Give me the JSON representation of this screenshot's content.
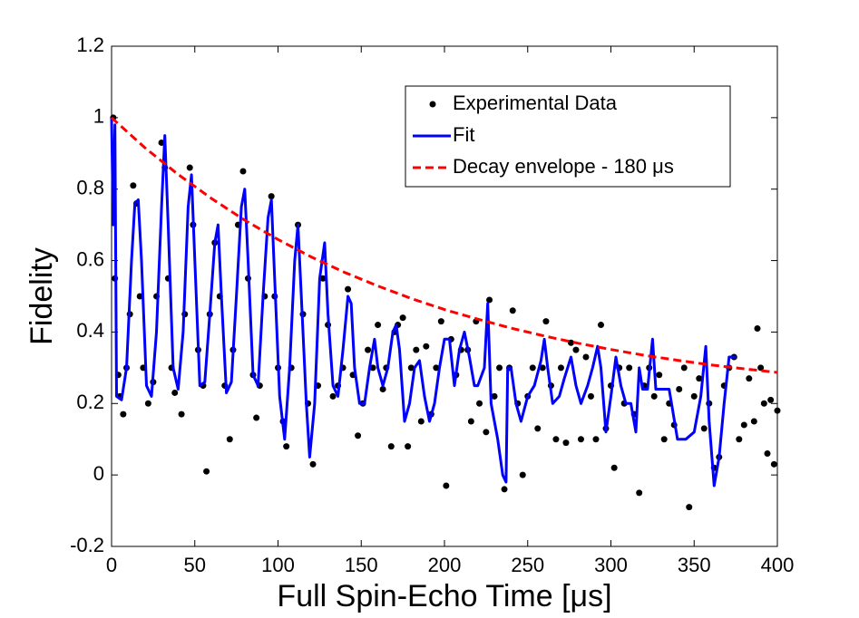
{
  "chart_data": {
    "type": "scatter",
    "xlabel": "Full Spin-Echo Time [μs]",
    "ylabel": "Fidelity",
    "xlim": [
      0,
      400
    ],
    "ylim": [
      -0.2,
      1.2
    ],
    "xticks": [
      0,
      50,
      100,
      150,
      200,
      250,
      300,
      350,
      400
    ],
    "yticks": [
      -0.2,
      0,
      0.2,
      0.4,
      0.6,
      0.8,
      1,
      1.2
    ],
    "legend": "upper right",
    "series": [
      {
        "name": "Experimental Data",
        "color": "#000000",
        "mode": "markers",
        "x": [
          1,
          2,
          4,
          5,
          7,
          9,
          11,
          13,
          15,
          17,
          19,
          22,
          25,
          27,
          30,
          32,
          34,
          36,
          38,
          42,
          44,
          47,
          49,
          52,
          55,
          57,
          59,
          62,
          65,
          68,
          71,
          73,
          76,
          79,
          82,
          85,
          87,
          89,
          92,
          96,
          98,
          100,
          103,
          105,
          108,
          112,
          115,
          118,
          121,
          124,
          127,
          130,
          133,
          136,
          139,
          142,
          145,
          148,
          151,
          154,
          157,
          160,
          163,
          165,
          168,
          170,
          172,
          175,
          178,
          180,
          183,
          186,
          189,
          192,
          195,
          198,
          201,
          204,
          207,
          210,
          214,
          216,
          219,
          221,
          225,
          227,
          230,
          233,
          236,
          239,
          241,
          244,
          247,
          250,
          253,
          256,
          259,
          261,
          264,
          267,
          270,
          273,
          276,
          279,
          282,
          285,
          288,
          291,
          294,
          297,
          300,
          302,
          305,
          308,
          311,
          314,
          317,
          320,
          323,
          326,
          329,
          332,
          335,
          338,
          341,
          344,
          347,
          350,
          353,
          356,
          359,
          362,
          365,
          368,
          371,
          374,
          377,
          380,
          383,
          386,
          388,
          390,
          392,
          394,
          396,
          398,
          400
        ],
        "values": [
          1.0,
          0.55,
          0.28,
          0.22,
          0.17,
          0.3,
          0.45,
          0.81,
          0.76,
          0.5,
          0.3,
          0.2,
          0.26,
          0.5,
          0.93,
          0.86,
          0.55,
          0.3,
          0.23,
          0.17,
          0.45,
          0.86,
          0.7,
          0.35,
          0.25,
          0.01,
          0.45,
          0.65,
          0.5,
          0.25,
          0.1,
          0.35,
          0.7,
          0.85,
          0.55,
          0.28,
          0.16,
          0.25,
          0.5,
          0.78,
          0.5,
          0.3,
          0.15,
          0.08,
          0.3,
          0.7,
          0.45,
          0.2,
          0.03,
          0.25,
          0.55,
          0.42,
          0.22,
          0.25,
          0.3,
          0.52,
          0.28,
          0.11,
          0.2,
          0.35,
          0.3,
          0.42,
          0.24,
          0.3,
          0.08,
          0.4,
          0.42,
          0.44,
          0.08,
          0.3,
          0.35,
          0.15,
          0.36,
          0.17,
          0.3,
          0.43,
          -0.03,
          0.38,
          0.28,
          0.35,
          0.35,
          0.15,
          0.43,
          0.2,
          0.12,
          0.49,
          0.22,
          0.3,
          -0.04,
          0.3,
          0.46,
          0.2,
          0.0,
          0.22,
          0.3,
          0.13,
          0.3,
          0.43,
          0.25,
          0.1,
          0.3,
          0.09,
          0.37,
          0.35,
          0.1,
          0.33,
          0.22,
          0.1,
          0.42,
          0.13,
          0.25,
          0.02,
          0.3,
          0.2,
          0.3,
          0.17,
          -0.05,
          0.25,
          0.3,
          0.22,
          0.28,
          0.1,
          0.2,
          0.14,
          0.24,
          0.3,
          -0.09,
          0.22,
          0.27,
          0.13,
          0.2,
          0.02,
          0.05,
          0.25,
          0.3,
          0.33,
          0.1,
          0.14,
          0.27,
          0.15,
          0.41,
          0.3,
          0.2,
          0.06,
          0.21,
          0.03,
          0.18
        ]
      },
      {
        "name": "Fit",
        "color": "#0000ff",
        "mode": "line",
        "x": [
          0,
          1,
          2,
          3,
          6,
          9,
          12,
          14,
          16,
          18,
          21,
          24,
          27,
          30,
          32,
          34,
          37,
          40,
          43,
          46,
          48,
          50,
          53,
          56,
          59,
          62,
          64,
          66,
          69,
          72,
          75,
          78,
          80,
          82,
          85,
          88,
          91,
          94,
          96,
          98,
          101,
          104,
          107,
          110,
          112,
          114,
          117,
          119,
          122,
          125,
          128,
          130,
          133,
          136,
          139,
          142,
          144,
          146,
          149,
          152,
          155,
          158,
          160,
          163,
          166,
          169,
          171,
          173,
          176,
          179,
          182,
          185,
          188,
          191,
          194,
          197,
          200,
          203,
          206,
          209,
          212,
          215,
          218,
          220,
          224,
          226,
          228,
          232,
          235,
          237,
          238,
          240,
          243,
          246,
          250,
          254,
          258,
          260,
          262,
          265,
          269,
          272,
          276,
          279,
          282,
          286,
          289,
          292,
          294,
          297,
          300,
          303,
          306,
          309,
          312,
          315,
          317,
          319,
          322,
          325,
          327,
          335,
          340,
          345,
          350,
          354,
          357,
          359,
          362,
          365,
          368,
          371,
          373,
          375
        ],
        "values": [
          1.0,
          0.7,
          0.98,
          0.22,
          0.21,
          0.3,
          0.6,
          0.76,
          0.77,
          0.6,
          0.25,
          0.22,
          0.4,
          0.75,
          0.95,
          0.7,
          0.3,
          0.24,
          0.4,
          0.75,
          0.84,
          0.6,
          0.25,
          0.26,
          0.45,
          0.65,
          0.7,
          0.5,
          0.23,
          0.26,
          0.5,
          0.75,
          0.8,
          0.6,
          0.28,
          0.25,
          0.5,
          0.72,
          0.77,
          0.55,
          0.22,
          0.1,
          0.3,
          0.6,
          0.7,
          0.5,
          0.2,
          0.05,
          0.2,
          0.55,
          0.65,
          0.45,
          0.25,
          0.22,
          0.35,
          0.5,
          0.48,
          0.3,
          0.2,
          0.2,
          0.3,
          0.38,
          0.3,
          0.25,
          0.3,
          0.4,
          0.42,
          0.35,
          0.15,
          0.2,
          0.3,
          0.32,
          0.22,
          0.15,
          0.2,
          0.3,
          0.38,
          0.38,
          0.25,
          0.35,
          0.4,
          0.33,
          0.25,
          0.25,
          0.3,
          0.48,
          0.2,
          0.1,
          0.0,
          -0.02,
          0.3,
          0.3,
          0.2,
          0.15,
          0.22,
          0.25,
          0.32,
          0.38,
          0.3,
          0.2,
          0.22,
          0.27,
          0.33,
          0.25,
          0.2,
          0.25,
          0.3,
          0.36,
          0.3,
          0.12,
          0.22,
          0.33,
          0.25,
          0.2,
          0.2,
          0.12,
          0.3,
          0.24,
          0.24,
          0.38,
          0.24,
          0.24,
          0.1,
          0.1,
          0.12,
          0.22,
          0.36,
          0.15,
          -0.03,
          0.05,
          0.2,
          0.33,
          0.33,
          0.33
        ]
      },
      {
        "name": "Decay envelope - 180 μs",
        "color": "#ff0000",
        "mode": "dashed",
        "x": [
          0,
          20,
          40,
          60,
          80,
          100,
          120,
          140,
          160,
          180,
          200,
          220,
          240,
          260,
          280,
          300,
          320,
          340,
          360,
          380,
          400
        ],
        "values": [
          1.0,
          0.916,
          0.841,
          0.774,
          0.713,
          0.659,
          0.61,
          0.567,
          0.529,
          0.494,
          0.463,
          0.436,
          0.411,
          0.389,
          0.369,
          0.351,
          0.335,
          0.321,
          0.308,
          0.297,
          0.287
        ]
      }
    ]
  }
}
